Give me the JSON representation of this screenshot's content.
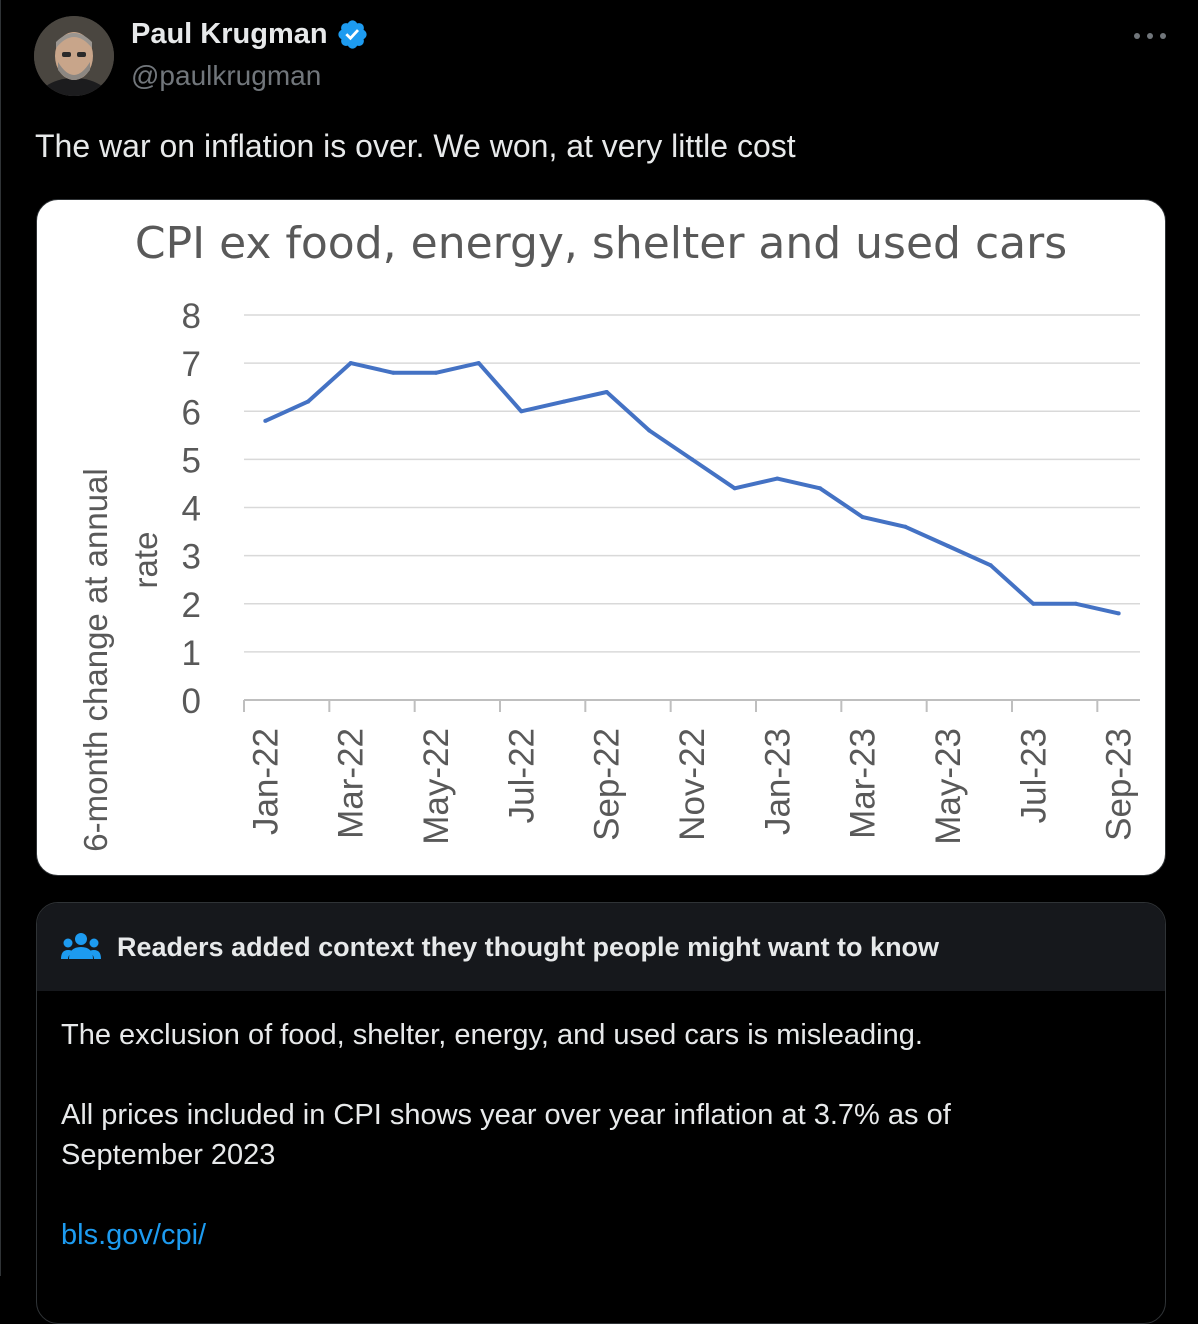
{
  "author": {
    "name": "Paul Krugman",
    "handle": "@paulkrugman",
    "verified": true,
    "verified_color": "#1d9bf0"
  },
  "more_icon": "more-horizontal-icon",
  "tweet": {
    "text": "The war on inflation is over. We won, at very little cost"
  },
  "chart_data": {
    "type": "line",
    "title": "CPI ex food, energy, shelter and used cars",
    "ylabel_line1": "6-month change at annual",
    "ylabel_line2": "rate",
    "xlabel": "",
    "ylim": [
      0,
      8
    ],
    "yticks": [
      "0",
      "1",
      "2",
      "3",
      "4",
      "5",
      "6",
      "7",
      "8"
    ],
    "xticks": [
      "Jan-22",
      "Mar-22",
      "May-22",
      "Jul-22",
      "Sep-22",
      "Nov-22",
      "Jan-23",
      "Mar-23",
      "May-23",
      "Jul-23",
      "Sep-23"
    ],
    "x": [
      "Jan-22",
      "Feb-22",
      "Mar-22",
      "Apr-22",
      "May-22",
      "Jun-22",
      "Jul-22",
      "Aug-22",
      "Sep-22",
      "Oct-22",
      "Nov-22",
      "Dec-22",
      "Jan-23",
      "Feb-23",
      "Mar-23",
      "Apr-23",
      "May-23",
      "Jun-23",
      "Jul-23",
      "Aug-23",
      "Sep-23"
    ],
    "series": [
      {
        "values": [
          5.8,
          6.2,
          7.0,
          6.8,
          6.8,
          7.0,
          6.0,
          6.2,
          6.4,
          5.6,
          5.0,
          4.4,
          4.6,
          4.4,
          3.8,
          3.6,
          3.2,
          2.8,
          2.0,
          2.0,
          1.8
        ],
        "color": "#4472c4"
      }
    ],
    "grid": true,
    "legend": "none"
  },
  "community_note": {
    "header": "Readers added context they thought people might want to know",
    "icon": "people-icon",
    "paragraph1": "The exclusion of food, shelter, energy, and used cars is misleading.",
    "paragraph2": "All prices included in CPI shows year over year inflation at 3.7% as of September 2023",
    "link": "bls.gov/cpi/",
    "link_color": "#1d9bf0"
  }
}
